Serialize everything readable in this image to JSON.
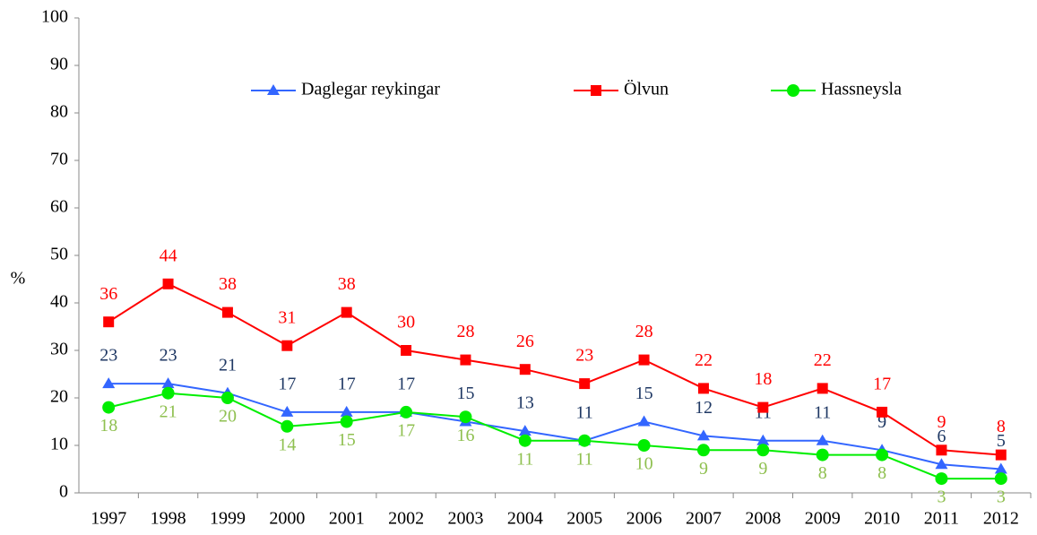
{
  "chart_data": {
    "type": "line",
    "ylabel": "%",
    "categories": [
      "1997",
      "1998",
      "1999",
      "2000",
      "2001",
      "2002",
      "2003",
      "2004",
      "2005",
      "2006",
      "2007",
      "2008",
      "2009",
      "2010",
      "2011",
      "2012"
    ],
    "series": [
      {
        "name": "Daglegar reykingar",
        "color": "#3366ff",
        "label_color": "#1f3864",
        "marker": "triangle",
        "values": [
          23,
          23,
          21,
          17,
          17,
          17,
          15,
          13,
          11,
          15,
          12,
          11,
          11,
          9,
          6,
          5
        ]
      },
      {
        "name": "Ölvun",
        "color": "#ff0000",
        "label_color": "#ff0000",
        "marker": "square",
        "values": [
          36,
          44,
          38,
          31,
          38,
          30,
          28,
          26,
          23,
          28,
          22,
          18,
          22,
          17,
          9,
          8
        ]
      },
      {
        "name": "Hassneysla",
        "color": "#00ee00",
        "label_color": "#8fc050",
        "marker": "circle",
        "values": [
          18,
          21,
          20,
          14,
          15,
          17,
          16,
          11,
          11,
          10,
          9,
          9,
          8,
          8,
          3,
          3
        ]
      }
    ],
    "ylim": [
      0,
      100
    ],
    "yticks": [
      0,
      10,
      20,
      30,
      40,
      50,
      60,
      70,
      80,
      90,
      100
    ],
    "grid": false
  }
}
